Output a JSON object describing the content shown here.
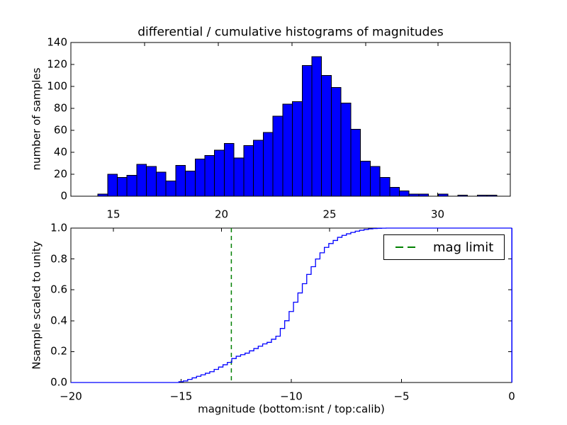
{
  "figure": {
    "background_color": "#ffffff"
  },
  "chart_data": [
    {
      "type": "bar",
      "subtype": "histogram",
      "title": "differential / cumulative histograms of magnitudes",
      "ylabel": "number of samples",
      "xlim": [
        13.05,
        33.35
      ],
      "ylim": [
        0,
        140
      ],
      "xticks": [
        15,
        20,
        25,
        30
      ],
      "xtick_labels": [
        "15",
        "20",
        "25",
        "30"
      ],
      "yticks": [
        0,
        20,
        40,
        60,
        80,
        100,
        120,
        140
      ],
      "ytick_labels": [
        "0",
        "20",
        "40",
        "60",
        "80",
        "100",
        "120",
        "140"
      ],
      "grid": false,
      "bar_color": "#0000ff",
      "bar_edge_color": "#000000",
      "bin_start": 14.28,
      "bin_width": 0.45,
      "values": [
        2,
        20,
        17,
        19,
        29,
        27,
        22,
        14,
        28,
        23,
        34,
        37,
        42,
        48,
        35,
        46,
        51,
        58,
        73,
        84,
        86,
        119,
        127,
        110,
        99,
        85,
        61,
        32,
        27,
        17,
        8,
        5,
        2,
        2,
        0,
        2,
        0,
        1,
        0,
        1,
        1
      ]
    },
    {
      "type": "line",
      "subtype": "cumulative-step",
      "ylabel": "Nsample scaled to unity",
      "xlabel": "magnitude (bottom:isnt / top:calib)",
      "xlim": [
        -20,
        0
      ],
      "ylim": [
        0.0,
        1.0
      ],
      "xticks": [
        -20,
        -15,
        -10,
        -5,
        0
      ],
      "xtick_labels": [
        "−20",
        "−15",
        "−10",
        "−5",
        "0"
      ],
      "yticks": [
        0.0,
        0.2,
        0.4,
        0.6,
        0.8,
        1.0
      ],
      "ytick_labels": [
        "0.0",
        "0.2",
        "0.4",
        "0.6",
        "0.8",
        "1.0"
      ],
      "grid": false,
      "line_color": "#0000ff",
      "top_axis_ticks_calib": [
        15,
        20,
        25,
        30
      ],
      "steps": [
        [
          -20,
          0
        ],
        [
          -15.1,
          0.005
        ],
        [
          -14.9,
          0.01
        ],
        [
          -14.7,
          0.02
        ],
        [
          -14.5,
          0.03
        ],
        [
          -14.3,
          0.04
        ],
        [
          -14.1,
          0.05
        ],
        [
          -13.9,
          0.06
        ],
        [
          -13.7,
          0.07
        ],
        [
          -13.5,
          0.085
        ],
        [
          -13.3,
          0.1
        ],
        [
          -13.1,
          0.115
        ],
        [
          -12.9,
          0.13
        ],
        [
          -12.7,
          0.155
        ],
        [
          -12.5,
          0.17
        ],
        [
          -12.3,
          0.18
        ],
        [
          -12.1,
          0.19
        ],
        [
          -11.9,
          0.205
        ],
        [
          -11.7,
          0.22
        ],
        [
          -11.5,
          0.235
        ],
        [
          -11.3,
          0.25
        ],
        [
          -11.1,
          0.26
        ],
        [
          -10.9,
          0.28
        ],
        [
          -10.7,
          0.3
        ],
        [
          -10.5,
          0.35
        ],
        [
          -10.3,
          0.4
        ],
        [
          -10.1,
          0.46
        ],
        [
          -9.9,
          0.52
        ],
        [
          -9.7,
          0.58
        ],
        [
          -9.5,
          0.64
        ],
        [
          -9.3,
          0.7
        ],
        [
          -9.1,
          0.75
        ],
        [
          -8.9,
          0.8
        ],
        [
          -8.7,
          0.84
        ],
        [
          -8.5,
          0.875
        ],
        [
          -8.3,
          0.9
        ],
        [
          -8.1,
          0.92
        ],
        [
          -7.9,
          0.94
        ],
        [
          -7.7,
          0.953
        ],
        [
          -7.5,
          0.963
        ],
        [
          -7.3,
          0.972
        ],
        [
          -7.1,
          0.98
        ],
        [
          -6.9,
          0.986
        ],
        [
          -6.7,
          0.991
        ],
        [
          -6.5,
          0.995
        ],
        [
          -6.3,
          0.997
        ],
        [
          -6.1,
          0.9985
        ],
        [
          -5.9,
          0.9995
        ],
        [
          -5.7,
          1.0
        ],
        [
          0,
          1.0
        ]
      ],
      "mag_limit_line": {
        "x": -12.72,
        "color": "#008000",
        "style": "dashed"
      },
      "legend": {
        "position": "upper right",
        "entries": [
          {
            "label": "mag limit",
            "color": "#008000",
            "linestyle": "dashed"
          }
        ]
      }
    }
  ]
}
